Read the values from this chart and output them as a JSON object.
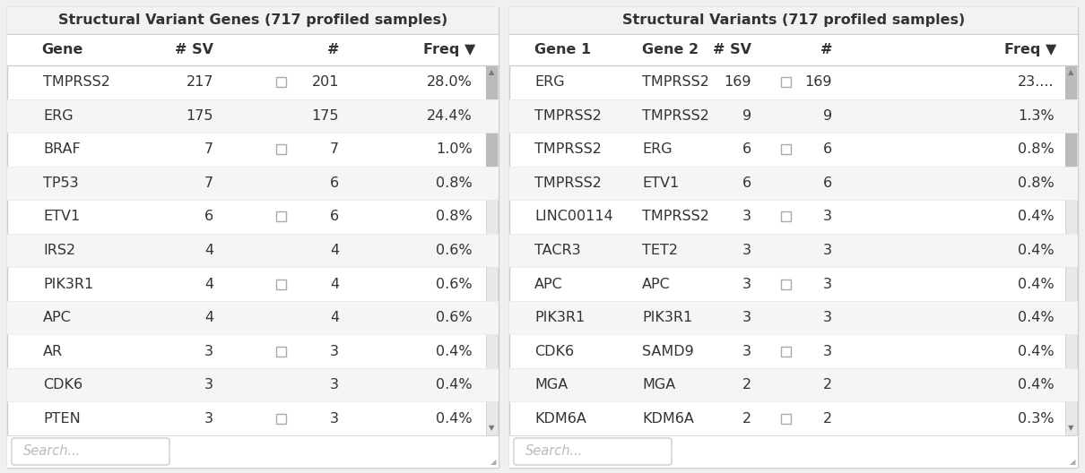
{
  "left_table": {
    "title": "Structural Variant Genes (717 profiled samples)",
    "headers": [
      "Gene",
      "# SV",
      "#",
      "Freq ▼"
    ],
    "rows": [
      [
        "TMPRSS2",
        "217",
        "201",
        "28.0%"
      ],
      [
        "ERG",
        "175",
        "175",
        "24.4%"
      ],
      [
        "BRAF",
        "7",
        "7",
        "1.0%"
      ],
      [
        "TP53",
        "7",
        "6",
        "0.8%"
      ],
      [
        "ETV1",
        "6",
        "6",
        "0.8%"
      ],
      [
        "IRS2",
        "4",
        "4",
        "0.6%"
      ],
      [
        "PIK3R1",
        "4",
        "4",
        "0.6%"
      ],
      [
        "APC",
        "4",
        "4",
        "0.6%"
      ],
      [
        "AR",
        "3",
        "3",
        "0.4%"
      ],
      [
        "CDK6",
        "3",
        "3",
        "0.4%"
      ],
      [
        "PTEN",
        "3",
        "3",
        "0.4%"
      ]
    ],
    "search_placeholder": "Search..."
  },
  "right_table": {
    "title": "Structural Variants (717 profiled samples)",
    "headers": [
      "Gene 1",
      "Gene 2",
      "# SV",
      "#",
      "Freq ▼"
    ],
    "rows": [
      [
        "ERG",
        "TMPRSS2",
        "169",
        "169",
        "23...."
      ],
      [
        "TMPRSS2",
        "TMPRSS2",
        "9",
        "9",
        "1.3%"
      ],
      [
        "TMPRSS2",
        "ERG",
        "6",
        "6",
        "0.8%"
      ],
      [
        "TMPRSS2",
        "ETV1",
        "6",
        "6",
        "0.8%"
      ],
      [
        "LINC00114",
        "TMPRSS2",
        "3",
        "3",
        "0.4%"
      ],
      [
        "TACR3",
        "TET2",
        "3",
        "3",
        "0.4%"
      ],
      [
        "APC",
        "APC",
        "3",
        "3",
        "0.4%"
      ],
      [
        "PIK3R1",
        "PIK3R1",
        "3",
        "3",
        "0.4%"
      ],
      [
        "CDK6",
        "SAMD9",
        "3",
        "3",
        "0.4%"
      ],
      [
        "MGA",
        "MGA",
        "2",
        "2",
        "0.4%"
      ],
      [
        "KDM6A",
        "KDM6A",
        "2",
        "2",
        "0.3%"
      ]
    ],
    "search_placeholder": "Search..."
  },
  "bg_color": "#ffffff",
  "outer_bg": "#f0f0f0",
  "title_bg": "#f2f2f2",
  "header_bg": "#ffffff",
  "border_color": "#cccccc",
  "row_border_color": "#e8e8e8",
  "alt_row_color": "#f5f5f5",
  "white_row_color": "#ffffff",
  "text_color": "#333333",
  "header_text_color": "#333333",
  "search_color": "#bbbbbb",
  "scrollbar_bg": "#e8e8e8",
  "scrollbar_thumb": "#bbbbbb",
  "funnel_color": "#808080",
  "title_fontsize": 11.5,
  "header_fontsize": 11.5,
  "row_fontsize": 11.5,
  "search_fontsize": 10.5
}
